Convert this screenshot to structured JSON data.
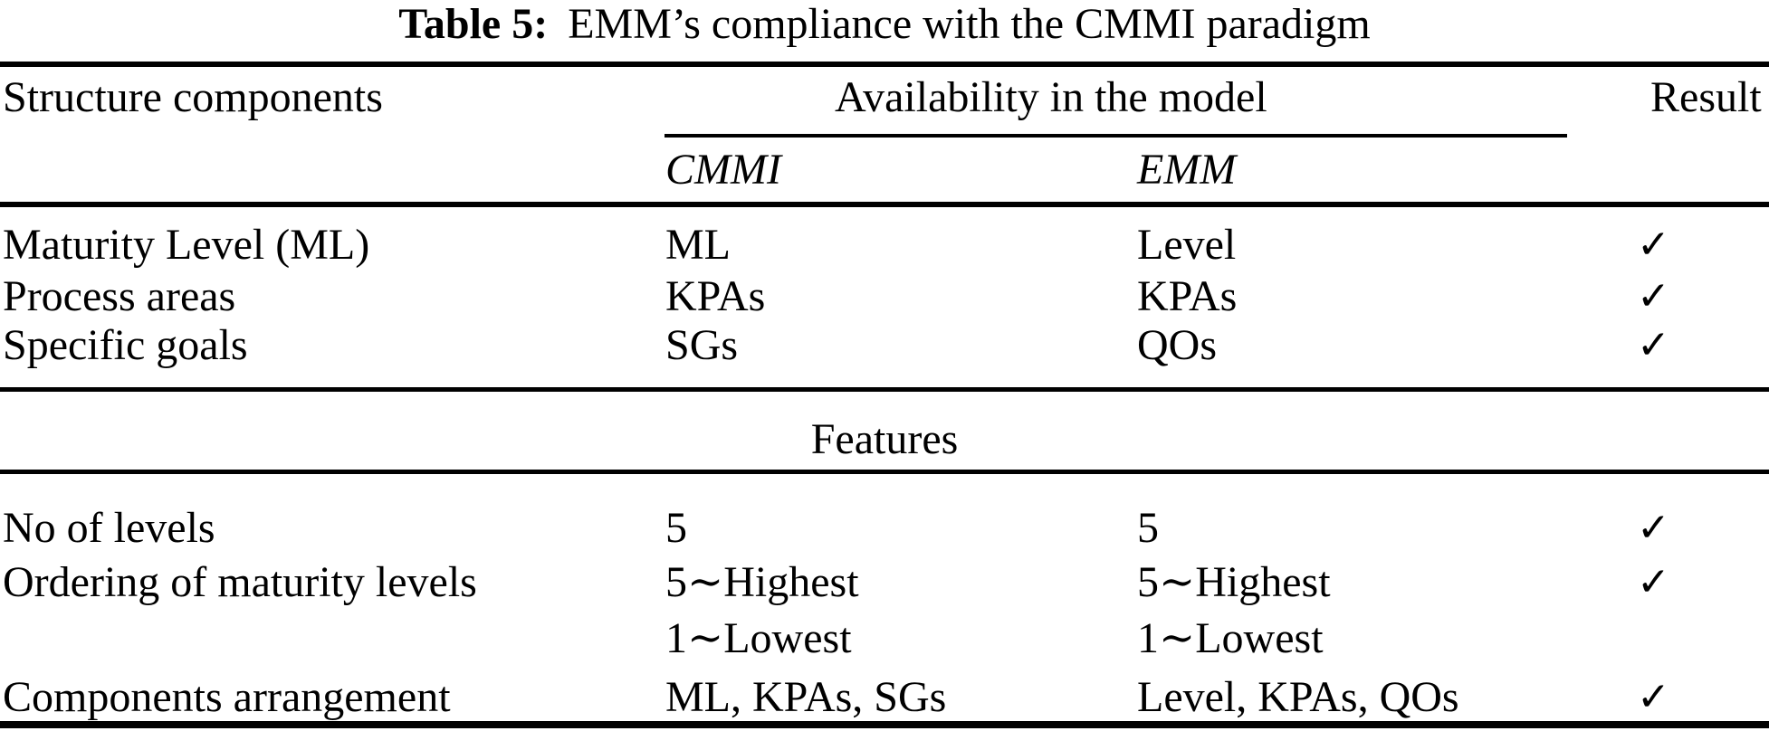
{
  "caption": {
    "label": "Table 5:",
    "text": "EMM’s compliance with the CMMI paradigm"
  },
  "header": {
    "structure_col": "Structure components",
    "availability_group": "Availability in the model",
    "cmmi_col": "CMMI",
    "emm_col": "EMM",
    "result_col": "Result"
  },
  "check_icon": "✓",
  "structure_section": {
    "rows": [
      {
        "component": "Maturity Level (ML)",
        "cmmi": "ML",
        "emm": "Level",
        "result": "✓"
      },
      {
        "component": "Process areas",
        "cmmi": "KPAs",
        "emm": "KPAs",
        "result": "✓"
      },
      {
        "component": "Specific goals",
        "cmmi": "SGs",
        "emm": "QOs",
        "result": "✓"
      }
    ]
  },
  "features_section": {
    "title": "Features",
    "rows": [
      {
        "component": "No of levels",
        "cmmi": "5",
        "emm": "5",
        "result": "✓"
      },
      {
        "component": "Ordering of maturity levels",
        "cmmi": "5∼Highest",
        "emm": "5∼Highest",
        "result": "✓"
      },
      {
        "component": "",
        "cmmi": "1∼Lowest",
        "emm": "1∼Lowest",
        "result": ""
      },
      {
        "component": "Components arrangement",
        "cmmi": "ML, KPAs, SGs",
        "emm": "Level, KPAs, QOs",
        "result": "✓"
      }
    ]
  }
}
